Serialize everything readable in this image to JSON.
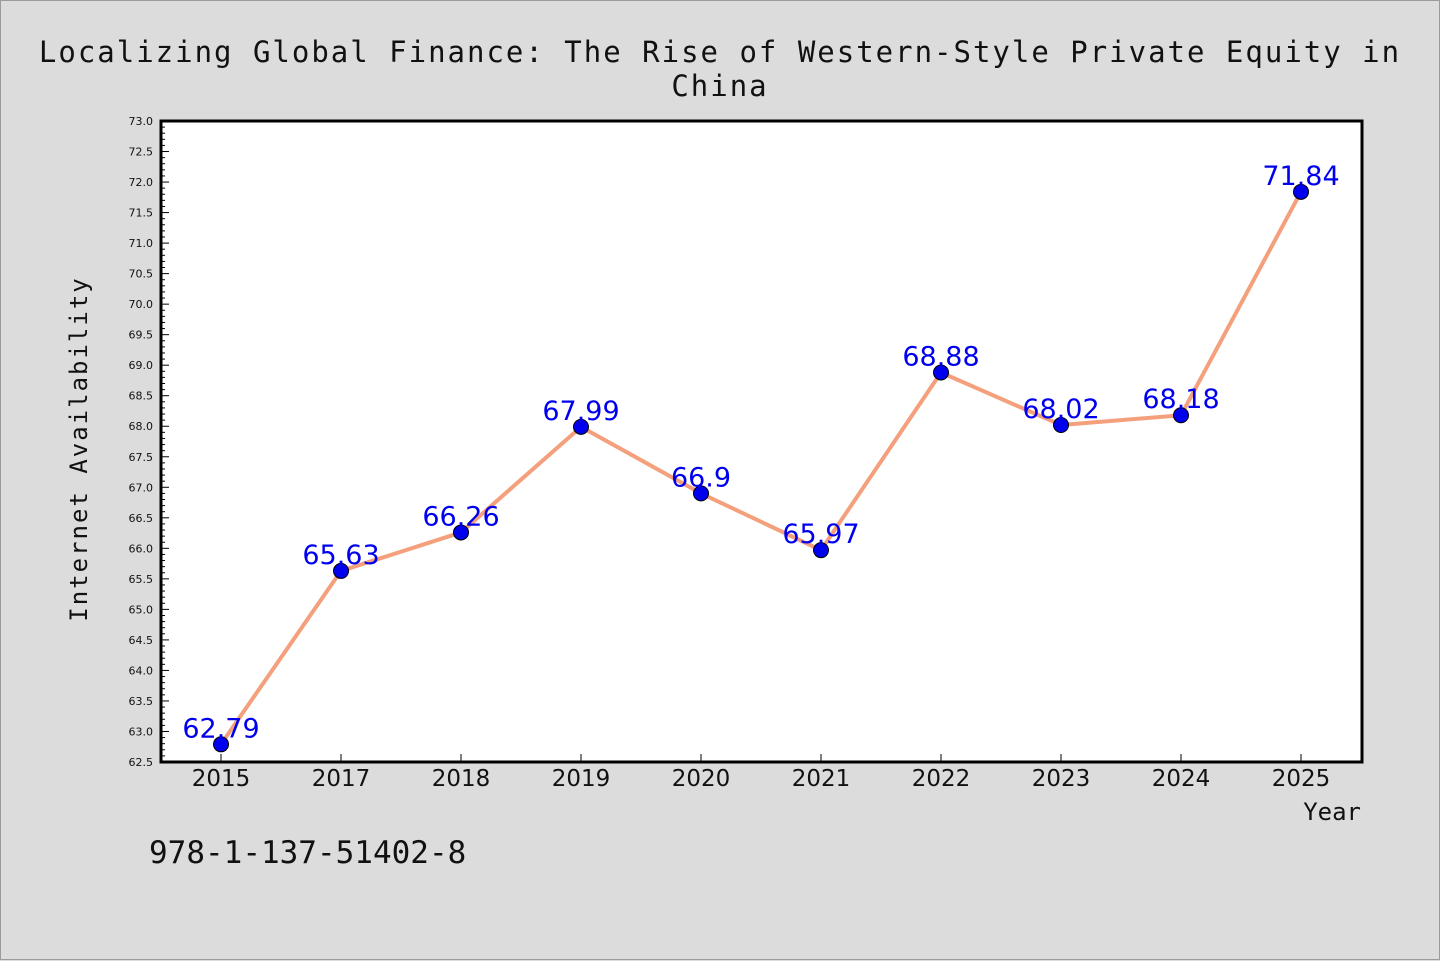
{
  "title": "Localizing Global Finance: The Rise of Western-Style Private Equity in China",
  "isbn": "978-1-137-51402-8",
  "colors": {
    "line": "#f4a07c",
    "marker": "#0000ee",
    "label": "#0000ee",
    "background": "#dcdcdc",
    "plot_bg": "#ffffff"
  },
  "chart_data": {
    "type": "line",
    "xlabel": "Year",
    "ylabel": "Internet Availability",
    "ylim": [
      62.5,
      73.0
    ],
    "y_tick_step": 0.5,
    "grid": false,
    "categories": [
      "2015",
      "2017",
      "2018",
      "2019",
      "2020",
      "2021",
      "2022",
      "2023",
      "2024",
      "2025"
    ],
    "series": [
      {
        "values": [
          62.79,
          65.63,
          66.26,
          67.99,
          66.9,
          65.97,
          68.88,
          68.02,
          68.18,
          71.84
        ],
        "labels": [
          "62.79",
          "65.63",
          "66.26",
          "67.99",
          "66.9",
          "65.97",
          "68.88",
          "68.02",
          "68.18",
          "71.84"
        ]
      }
    ]
  }
}
